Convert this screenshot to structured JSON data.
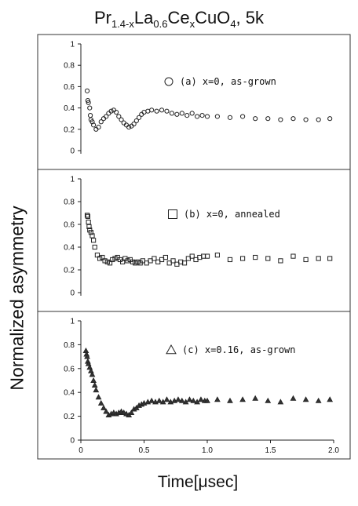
{
  "title": {
    "prefix": "Pr",
    "sub1": "1.4-x",
    "part2": "La",
    "sub2": "0.6",
    "part3": "Ce",
    "sub3": "x",
    "part4": "CuO",
    "sub4": "4",
    "suffix": ", 5k"
  },
  "ylabel": "Normalized asymmetry",
  "xlabel": "Time[μsec]",
  "chart_data": {
    "type": "scatter",
    "panels": 3,
    "shared_x": true,
    "xlim": [
      0,
      2.0
    ],
    "x_ticks": [
      "0",
      "0.5",
      "1.0",
      "1.5",
      "2.0"
    ],
    "ylim": [
      0,
      1
    ],
    "y_ticks": [
      "0",
      "0.2",
      "0.4",
      "0.6",
      "0.8",
      "1"
    ],
    "series": [
      {
        "name": "(a) x=0, as-grown",
        "marker": "circle",
        "points": [
          [
            0.05,
            0.56
          ],
          [
            0.055,
            0.47
          ],
          [
            0.06,
            0.45
          ],
          [
            0.07,
            0.4
          ],
          [
            0.075,
            0.33
          ],
          [
            0.08,
            0.29
          ],
          [
            0.09,
            0.27
          ],
          [
            0.1,
            0.24
          ],
          [
            0.12,
            0.2
          ],
          [
            0.14,
            0.22
          ],
          [
            0.16,
            0.27
          ],
          [
            0.18,
            0.3
          ],
          [
            0.2,
            0.32
          ],
          [
            0.22,
            0.35
          ],
          [
            0.24,
            0.37
          ],
          [
            0.26,
            0.38
          ],
          [
            0.28,
            0.36
          ],
          [
            0.3,
            0.32
          ],
          [
            0.32,
            0.29
          ],
          [
            0.34,
            0.26
          ],
          [
            0.36,
            0.24
          ],
          [
            0.38,
            0.22
          ],
          [
            0.4,
            0.23
          ],
          [
            0.42,
            0.25
          ],
          [
            0.44,
            0.28
          ],
          [
            0.46,
            0.31
          ],
          [
            0.48,
            0.34
          ],
          [
            0.5,
            0.36
          ],
          [
            0.53,
            0.37
          ],
          [
            0.56,
            0.38
          ],
          [
            0.6,
            0.37
          ],
          [
            0.64,
            0.38
          ],
          [
            0.68,
            0.37
          ],
          [
            0.72,
            0.35
          ],
          [
            0.76,
            0.34
          ],
          [
            0.8,
            0.35
          ],
          [
            0.84,
            0.33
          ],
          [
            0.88,
            0.35
          ],
          [
            0.92,
            0.32
          ],
          [
            0.96,
            0.33
          ],
          [
            1.0,
            0.32
          ],
          [
            1.08,
            0.32
          ],
          [
            1.18,
            0.31
          ],
          [
            1.28,
            0.32
          ],
          [
            1.38,
            0.3
          ],
          [
            1.48,
            0.3
          ],
          [
            1.58,
            0.29
          ],
          [
            1.68,
            0.3
          ],
          [
            1.78,
            0.29
          ],
          [
            1.88,
            0.29
          ],
          [
            1.97,
            0.3
          ]
        ]
      },
      {
        "name": "(b) x=0, annealed",
        "marker": "square",
        "points": [
          [
            0.05,
            0.68
          ],
          [
            0.055,
            0.67
          ],
          [
            0.06,
            0.62
          ],
          [
            0.065,
            0.58
          ],
          [
            0.07,
            0.55
          ],
          [
            0.08,
            0.53
          ],
          [
            0.09,
            0.5
          ],
          [
            0.1,
            0.46
          ],
          [
            0.11,
            0.4
          ],
          [
            0.13,
            0.33
          ],
          [
            0.15,
            0.3
          ],
          [
            0.17,
            0.31
          ],
          [
            0.19,
            0.28
          ],
          [
            0.21,
            0.27
          ],
          [
            0.23,
            0.26
          ],
          [
            0.25,
            0.29
          ],
          [
            0.27,
            0.3
          ],
          [
            0.29,
            0.31
          ],
          [
            0.31,
            0.29
          ],
          [
            0.33,
            0.27
          ],
          [
            0.35,
            0.3
          ],
          [
            0.37,
            0.28
          ],
          [
            0.39,
            0.29
          ],
          [
            0.41,
            0.27
          ],
          [
            0.43,
            0.26
          ],
          [
            0.45,
            0.27
          ],
          [
            0.47,
            0.26
          ],
          [
            0.49,
            0.28
          ],
          [
            0.52,
            0.26
          ],
          [
            0.55,
            0.28
          ],
          [
            0.58,
            0.3
          ],
          [
            0.61,
            0.27
          ],
          [
            0.64,
            0.29
          ],
          [
            0.67,
            0.31
          ],
          [
            0.7,
            0.26
          ],
          [
            0.73,
            0.28
          ],
          [
            0.76,
            0.25
          ],
          [
            0.79,
            0.27
          ],
          [
            0.82,
            0.26
          ],
          [
            0.85,
            0.3
          ],
          [
            0.88,
            0.32
          ],
          [
            0.91,
            0.29
          ],
          [
            0.94,
            0.31
          ],
          [
            0.97,
            0.32
          ],
          [
            1.0,
            0.32
          ],
          [
            1.08,
            0.33
          ],
          [
            1.18,
            0.29
          ],
          [
            1.28,
            0.3
          ],
          [
            1.38,
            0.31
          ],
          [
            1.48,
            0.3
          ],
          [
            1.58,
            0.28
          ],
          [
            1.68,
            0.32
          ],
          [
            1.78,
            0.29
          ],
          [
            1.88,
            0.3
          ],
          [
            1.97,
            0.3
          ]
        ]
      },
      {
        "name": "(c) x=0.16, as-grown",
        "marker": "triangle",
        "points": [
          [
            0.04,
            0.75
          ],
          [
            0.045,
            0.72
          ],
          [
            0.05,
            0.7
          ],
          [
            0.055,
            0.66
          ],
          [
            0.06,
            0.64
          ],
          [
            0.07,
            0.61
          ],
          [
            0.08,
            0.58
          ],
          [
            0.09,
            0.55
          ],
          [
            0.1,
            0.5
          ],
          [
            0.11,
            0.46
          ],
          [
            0.12,
            0.42
          ],
          [
            0.14,
            0.36
          ],
          [
            0.16,
            0.31
          ],
          [
            0.18,
            0.27
          ],
          [
            0.2,
            0.24
          ],
          [
            0.22,
            0.21
          ],
          [
            0.24,
            0.22
          ],
          [
            0.26,
            0.23
          ],
          [
            0.28,
            0.22
          ],
          [
            0.3,
            0.23
          ],
          [
            0.32,
            0.24
          ],
          [
            0.34,
            0.23
          ],
          [
            0.36,
            0.22
          ],
          [
            0.38,
            0.21
          ],
          [
            0.4,
            0.23
          ],
          [
            0.42,
            0.26
          ],
          [
            0.44,
            0.27
          ],
          [
            0.46,
            0.29
          ],
          [
            0.48,
            0.3
          ],
          [
            0.5,
            0.31
          ],
          [
            0.53,
            0.32
          ],
          [
            0.56,
            0.33
          ],
          [
            0.59,
            0.32
          ],
          [
            0.62,
            0.33
          ],
          [
            0.65,
            0.32
          ],
          [
            0.68,
            0.34
          ],
          [
            0.71,
            0.32
          ],
          [
            0.74,
            0.33
          ],
          [
            0.77,
            0.34
          ],
          [
            0.8,
            0.33
          ],
          [
            0.83,
            0.32
          ],
          [
            0.86,
            0.34
          ],
          [
            0.89,
            0.33
          ],
          [
            0.92,
            0.32
          ],
          [
            0.95,
            0.34
          ],
          [
            0.98,
            0.33
          ],
          [
            1.0,
            0.33
          ],
          [
            1.08,
            0.34
          ],
          [
            1.18,
            0.33
          ],
          [
            1.28,
            0.34
          ],
          [
            1.38,
            0.35
          ],
          [
            1.48,
            0.33
          ],
          [
            1.58,
            0.32
          ],
          [
            1.68,
            0.35
          ],
          [
            1.78,
            0.34
          ],
          [
            1.88,
            0.33
          ],
          [
            1.97,
            0.34
          ]
        ]
      }
    ]
  }
}
